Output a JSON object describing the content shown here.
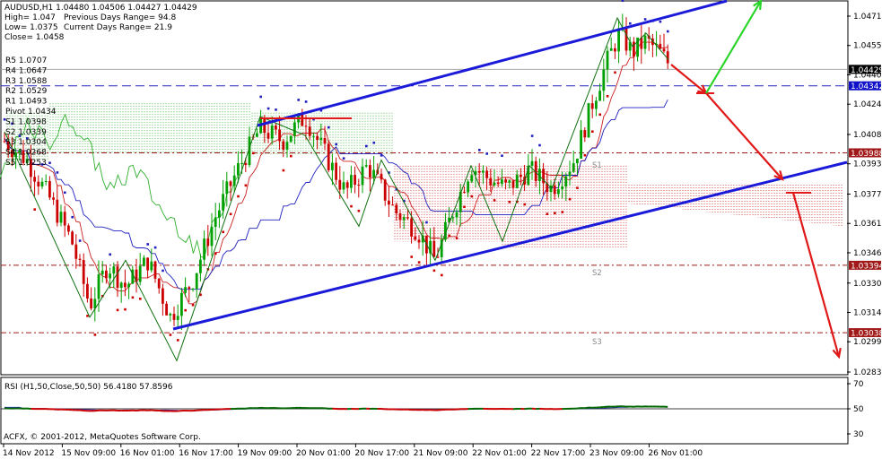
{
  "header": {
    "symbol": "AUDUSD,H1",
    "ohlc": "1.04480 1.04506 1.04427 1.04429",
    "high": "High= 1.047",
    "prev_range": "Previous Days Range= 94.8",
    "low": "Low= 1.0375",
    "curr_range": "Current Days Range= 21.9",
    "close": "Close= 1.0458"
  },
  "pivots": [
    {
      "label": "R5 1.0707",
      "price": 1.0707
    },
    {
      "label": "R4 1.0647",
      "price": 1.0647
    },
    {
      "label": "R3 1.0588",
      "price": 1.0588
    },
    {
      "label": "R2 1.0529",
      "price": 1.0529
    },
    {
      "label": "R1 1.0493",
      "price": 1.0493
    },
    {
      "label": "Pivot 1.0434",
      "price": 1.0434
    },
    {
      "label": "S1 1.0398",
      "price": 1.0398
    },
    {
      "label": "S2 1.0339",
      "price": 1.0339
    },
    {
      "label": "S3 1.0304",
      "price": 1.0304
    },
    {
      "label": "S4 1.0268",
      "price": 1.0268
    },
    {
      "label": "S5 1.0253",
      "price": 1.0253
    }
  ],
  "chart_labels": {
    "s1": "S1",
    "s2": "S2",
    "s3": "S3"
  },
  "price_axis": {
    "ticks": [
      "1.04710",
      "1.04555",
      "1.04400",
      "1.04245",
      "1.04085",
      "1.03930",
      "1.03770",
      "1.03615",
      "1.03460",
      "1.03300",
      "1.03145",
      "1.02990",
      "1.02830"
    ],
    "badges": [
      {
        "text": "1.04429",
        "bg": "#000000",
        "fg": "#ffffff"
      },
      {
        "text": "1.04342",
        "bg": "#1010c8",
        "fg": "#ffffff"
      },
      {
        "text": "1.03988",
        "bg": "#a01818",
        "fg": "#ffffff"
      },
      {
        "text": "1.03394",
        "bg": "#a01818",
        "fg": "#ffffff"
      },
      {
        "text": "1.03038",
        "bg": "#a01818",
        "fg": "#ffffff"
      }
    ]
  },
  "time_axis": [
    "14 Nov 2012",
    "15 Nov 09:00",
    "16 Nov 01:00",
    "16 Nov 17:00",
    "19 Nov 09:00",
    "20 Nov 01:00",
    "20 Nov 17:00",
    "21 Nov 09:00",
    "22 Nov 01:00",
    "22 Nov 17:00",
    "23 Nov 09:00",
    "26 Nov 01:00"
  ],
  "rsi": {
    "label": "RSI (H1,50,Close,50,50) 56.4180 57.8596",
    "ticks": [
      "70",
      "50",
      "30"
    ]
  },
  "copyright": "ACFX, © 2001-2012, MetaQuotes Software Corp.",
  "colors": {
    "bull": "#00a000",
    "bear": "#cc0000",
    "trendline": "#1a1ad8",
    "arrow_red": "#e01818",
    "arrow_green": "#28d428",
    "ichimoku_green": "#30b030",
    "ichimoku_red": "#cc2020",
    "kijun": "#2020c0"
  },
  "chart_data": {
    "type": "line",
    "title": "AUDUSD,H1",
    "ylim": [
      1.0276,
      1.0478
    ],
    "x": [
      "14 Nov 2012",
      "15 Nov 09:00",
      "16 Nov 01:00",
      "16 Nov 17:00",
      "19 Nov 09:00",
      "20 Nov 01:00",
      "20 Nov 17:00",
      "21 Nov 09:00",
      "22 Nov 01:00",
      "22 Nov 17:00",
      "23 Nov 09:00",
      "26 Nov 01:00"
    ],
    "series": [
      {
        "values": [
          1.0405,
          1.0345,
          1.0318,
          1.0305,
          1.041,
          1.0405,
          1.038,
          1.0345,
          1.0385,
          1.0382,
          1.0462,
          1.0446
        ]
      }
    ]
  }
}
